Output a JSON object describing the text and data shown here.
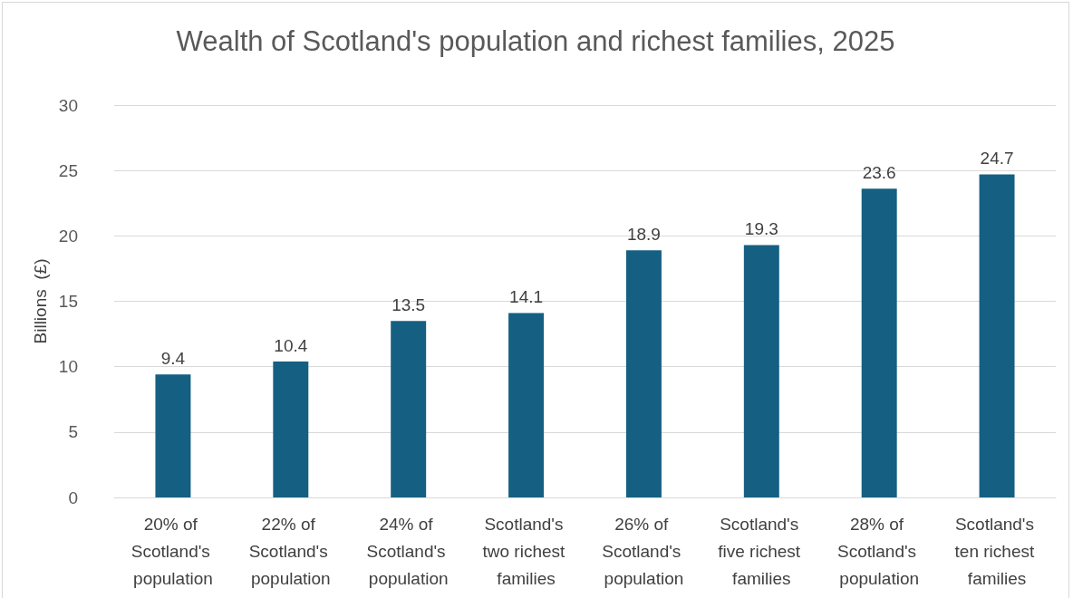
{
  "chart_data": {
    "type": "bar",
    "title": "Wealth of Scotland's population and richest families, 2025",
    "ylabel": "Billions  (£)",
    "categories": [
      "20% of Scotland's population",
      "22% of Scotland's population",
      "24% of Scotland's population",
      "Scotland's two richest families",
      "26% of Scotland's population",
      "Scotland's five richest families",
      "28% of Scotland's population",
      "Scotland's ten richest families"
    ],
    "values": [
      9.4,
      10.4,
      13.5,
      14.1,
      18.9,
      19.3,
      23.6,
      24.7
    ],
    "color": "#156082",
    "ylim": [
      0,
      30
    ],
    "yticks": [
      0,
      5,
      10,
      15,
      20,
      25,
      30
    ],
    "grid": "y",
    "data_labels": true
  }
}
